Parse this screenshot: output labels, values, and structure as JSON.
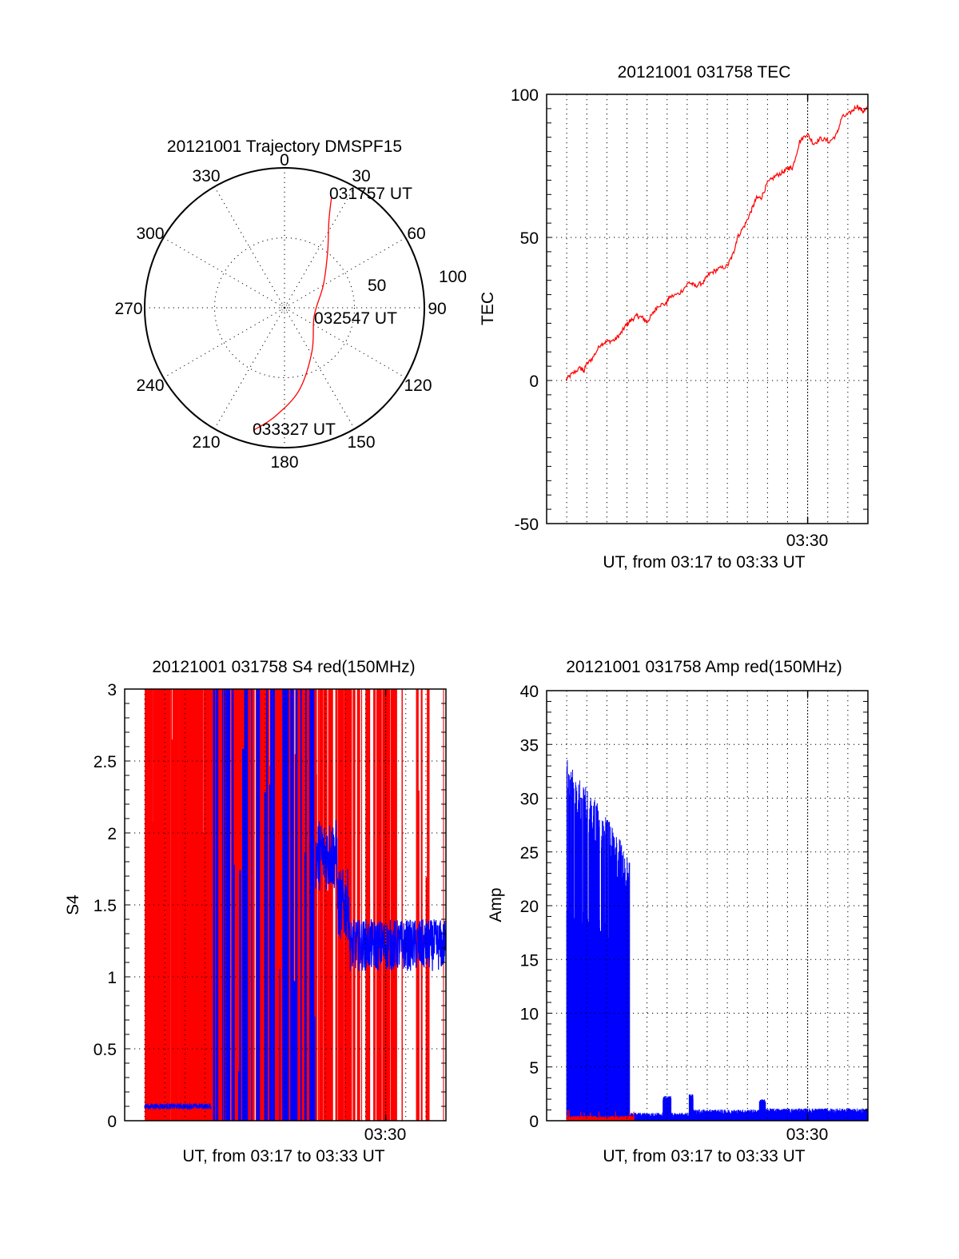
{
  "chart_data": [
    {
      "type": "polar",
      "title": "20121001 Trajectory DMSPF15",
      "azimuth_labels": [
        "0",
        "30",
        "60",
        "90",
        "120",
        "150",
        "180",
        "210",
        "240",
        "270",
        "300",
        "330"
      ],
      "radial_labels": [
        "50",
        "100"
      ],
      "rlim": [
        0,
        100
      ],
      "grid": true,
      "trajectory_color": "#ff0000",
      "trajectory": [
        {
          "az": 23,
          "r": 86
        },
        {
          "az": 27,
          "r": 70
        },
        {
          "az": 38,
          "r": 50
        },
        {
          "az": 60,
          "r": 32
        },
        {
          "az": 105,
          "r": 22
        },
        {
          "az": 148,
          "r": 37
        },
        {
          "az": 170,
          "r": 60
        },
        {
          "az": 185,
          "r": 78
        },
        {
          "az": 194,
          "r": 90
        }
      ],
      "annotations": [
        {
          "text": "031757 UT",
          "at": "start"
        },
        {
          "text": "032547 UT",
          "at": "middle"
        },
        {
          "text": "033327 UT",
          "at": "end"
        }
      ]
    },
    {
      "type": "line",
      "title": "20121001 031758 TEC",
      "xlabel": "UT, from 03:17 to 03:33 UT",
      "ylabel": "TEC",
      "xlim": [
        0,
        16
      ],
      "ylim": [
        -50,
        100
      ],
      "yticks": [
        "-50",
        "0",
        "50",
        "100"
      ],
      "xticks": [
        {
          "value": 13,
          "label": "03:30"
        }
      ],
      "grid": true,
      "x_units": "minutes after 03:17 UT",
      "series": [
        {
          "name": "TEC",
          "color": "#ff0000",
          "x": [
            0.97,
            1.3,
            1.7,
            1.85,
            1.95,
            2.3,
            2.7,
            3.0,
            3.4,
            3.7,
            3.95,
            4.2,
            4.5,
            4.75,
            5.0,
            5.3,
            5.55,
            5.95,
            6.1,
            6.6,
            7.1,
            7.4,
            7.8,
            8.1,
            8.5,
            9.0,
            9.3,
            9.5,
            9.9,
            10.2,
            10.45,
            10.7,
            11.0,
            11.4,
            11.8,
            12.05,
            12.25,
            12.6,
            12.97,
            13.3,
            13.65,
            14.1,
            14.45,
            14.7,
            15.1,
            15.45,
            15.75,
            15.95
          ],
          "y": [
            0.3,
            2.5,
            4.5,
            3.0,
            5.3,
            8.0,
            12.8,
            13.5,
            14.2,
            16.5,
            19.3,
            21.0,
            22.6,
            22.0,
            20.4,
            23.5,
            26.3,
            26.8,
            29.0,
            30.4,
            34.3,
            33.0,
            34.3,
            37.2,
            38.8,
            40.0,
            44.4,
            50.0,
            54.7,
            59.5,
            63.7,
            64.0,
            69.0,
            71.5,
            72.9,
            74.3,
            74.3,
            83.5,
            86.3,
            82.7,
            84.6,
            83.5,
            86.0,
            91.9,
            93.3,
            96.0,
            94.1,
            94.7
          ]
        }
      ]
    },
    {
      "type": "bar",
      "title": "20121001 031758 S4 red(150MHz)",
      "xlabel": "UT, from 03:17 to 03:33 UT",
      "ylabel": "S4",
      "xlim": [
        0,
        16
      ],
      "ylim": [
        0,
        3
      ],
      "yticks": [
        "0",
        "0.5",
        "1",
        "1.5",
        "2",
        "2.5",
        "3"
      ],
      "xticks": [
        {
          "value": 13,
          "label": "03:30"
        }
      ],
      "grid": true,
      "x_units": "minutes after 03:17 UT",
      "series": [
        {
          "name": "red",
          "color": "#ff0000",
          "segments": [
            {
              "x0": 1.0,
              "x1": 4.3,
              "level": 3.0,
              "density": 0.85
            },
            {
              "x0": 4.3,
              "x1": 9.5,
              "level": 3.0,
              "density": 0.55
            },
            {
              "x0": 9.5,
              "x1": 11.0,
              "level": 3.0,
              "density": 0.3
            },
            {
              "x0": 11.0,
              "x1": 16.0,
              "level": 3.0,
              "density": 0.18
            }
          ]
        },
        {
          "name": "blue",
          "color": "#0000ff",
          "segments": [
            {
              "x0": 1.0,
              "x1": 4.3,
              "mean": 0.1,
              "spread": 0.02
            },
            {
              "x0": 4.3,
              "x1": 9.5,
              "mean": 3.0,
              "spread": 0.0
            },
            {
              "x0": 9.5,
              "x1": 10.6,
              "mean": 1.85,
              "spread": 0.25
            },
            {
              "x0": 10.6,
              "x1": 11.2,
              "mean": 1.5,
              "spread": 0.25
            },
            {
              "x0": 11.2,
              "x1": 16.0,
              "mean": 1.22,
              "spread": 0.18
            }
          ]
        }
      ]
    },
    {
      "type": "bar",
      "title": "20121001 031758 Amp red(150MHz)",
      "xlabel": "UT, from 03:17 to 03:33 UT",
      "ylabel": "Amp",
      "xlim": [
        0,
        16
      ],
      "ylim": [
        0,
        40
      ],
      "yticks": [
        "0",
        "5",
        "10",
        "15",
        "20",
        "25",
        "30",
        "35",
        "40"
      ],
      "xticks": [
        {
          "value": 13,
          "label": "03:30"
        }
      ],
      "grid": true,
      "x_units": "minutes after 03:17 UT",
      "series": [
        {
          "name": "red",
          "color": "#ff0000",
          "segments": [
            {
              "x0": 1.0,
              "x1": 4.35,
              "mean": 0.3,
              "spread": 0.15
            }
          ]
        },
        {
          "name": "blue",
          "color": "#0000ff",
          "segments": [
            {
              "x0": 1.0,
              "x1": 4.1,
              "upper_start": 34,
              "upper_end": 25,
              "lower_start": 17,
              "lower_end": 15
            },
            {
              "x0": 4.1,
              "x1": 5.8,
              "mean": 0.5,
              "spread": 0.25
            },
            {
              "x0": 5.8,
              "x1": 6.2,
              "mean": 2.0,
              "spread": 0.3
            },
            {
              "x0": 6.2,
              "x1": 7.1,
              "mean": 0.5,
              "spread": 0.25
            },
            {
              "x0": 7.1,
              "x1": 7.3,
              "mean": 2.2,
              "spread": 0.3
            },
            {
              "x0": 7.3,
              "x1": 10.6,
              "mean": 0.75,
              "spread": 0.3
            },
            {
              "x0": 10.6,
              "x1": 10.9,
              "mean": 1.7,
              "spread": 0.3
            },
            {
              "x0": 10.9,
              "x1": 16.0,
              "mean": 0.85,
              "spread": 0.3
            }
          ]
        }
      ]
    }
  ]
}
